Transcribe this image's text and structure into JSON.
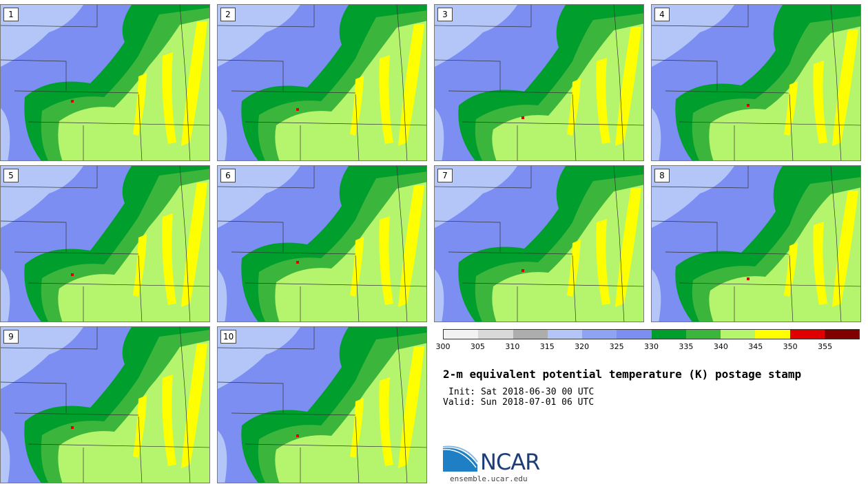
{
  "panels": [
    {
      "label": "1"
    },
    {
      "label": "2"
    },
    {
      "label": "3"
    },
    {
      "label": "4"
    },
    {
      "label": "5"
    },
    {
      "label": "6"
    },
    {
      "label": "7"
    },
    {
      "label": "8"
    },
    {
      "label": "9"
    },
    {
      "label": "10"
    }
  ],
  "legend": {
    "colors": [
      "#f2f2f2",
      "#d9d9d9",
      "#adadad",
      "#b3c6f7",
      "#8fa3f5",
      "#7d8ef2",
      "#009e2c",
      "#3cb53c",
      "#b5f56e",
      "#ffff00",
      "#e00000",
      "#800000"
    ],
    "ticks": [
      "300",
      "305",
      "310",
      "315",
      "320",
      "325",
      "330",
      "335",
      "340",
      "345",
      "350",
      "355"
    ]
  },
  "title": "2-m equivalent potential temperature (K) postage stamp",
  "init": "Init: Sat 2018-06-30 00 UTC",
  "valid": "Valid: Sun 2018-07-01 06 UTC",
  "logo": {
    "text": "NCAR",
    "site": "ensemble.ucar.edu"
  },
  "map_colors": {
    "light_blue": "#b3c6f7",
    "blue": "#7d8ef2",
    "dark_green": "#009e2c",
    "green": "#3cb53c",
    "light_green": "#b5f56e",
    "yellow": "#ffff00",
    "red": "#e00000",
    "gray": "#adadad"
  }
}
